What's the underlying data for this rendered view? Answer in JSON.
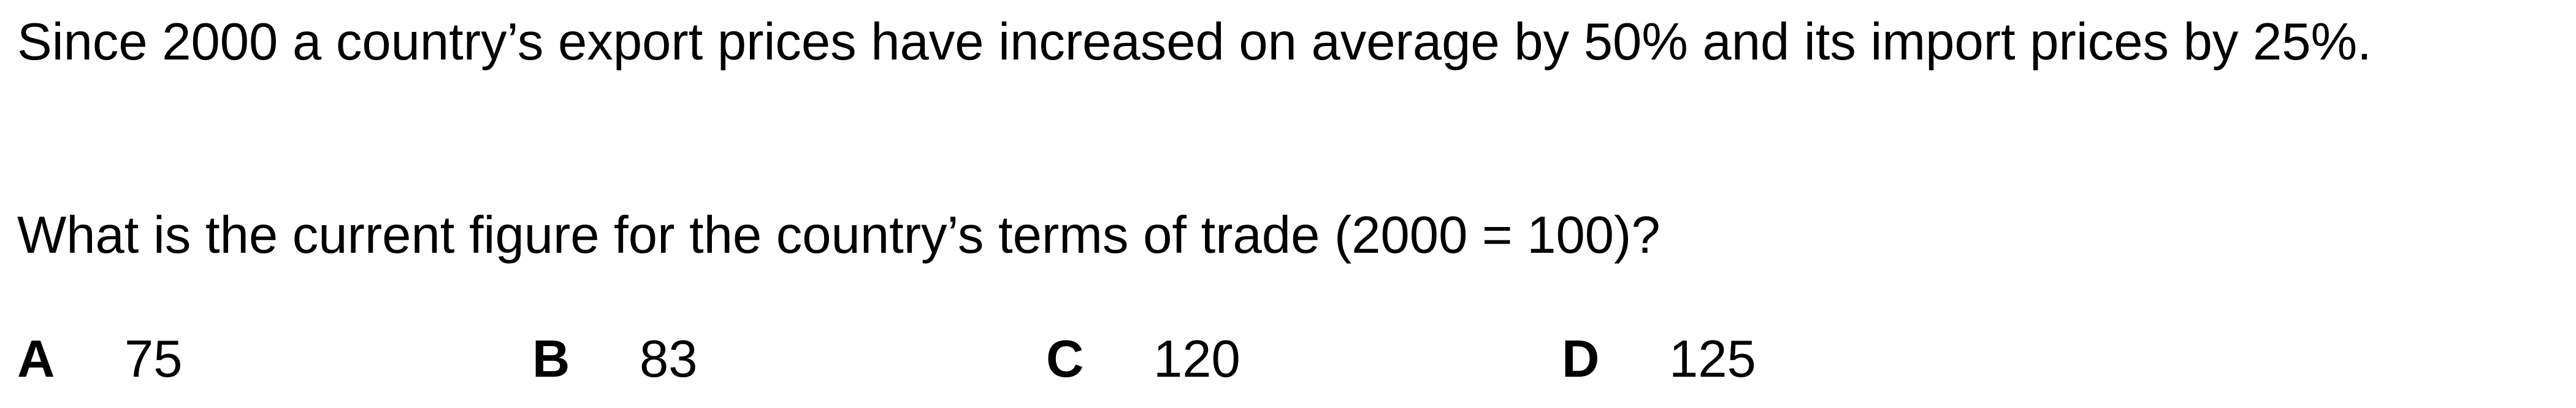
{
  "stem": "Since 2000 a country’s export prices have increased on average by 50% and its import prices by 25%.",
  "question": "What is the current figure for the country’s terms of trade (2000 = 100)?",
  "options": [
    {
      "letter": "A",
      "value": "75"
    },
    {
      "letter": "B",
      "value": "83"
    },
    {
      "letter": "C",
      "value": "120"
    },
    {
      "letter": "D",
      "value": "125"
    }
  ]
}
